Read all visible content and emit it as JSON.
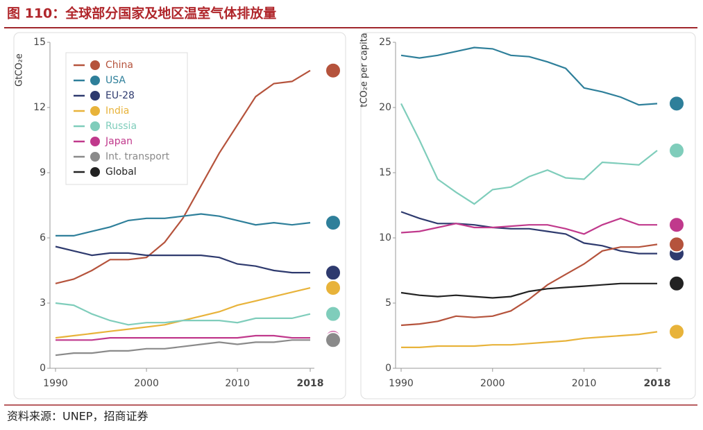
{
  "title": "图 110：全球部分国家及地区温室气体排放量",
  "source": "资料来源：UNEP，招商证券",
  "chart_data": [
    {
      "type": "line",
      "y_label": "GtCO₂e",
      "x": [
        1990,
        1992,
        1994,
        1996,
        1998,
        2000,
        2002,
        2004,
        2006,
        2008,
        2010,
        2012,
        2014,
        2016,
        2018
      ],
      "xlim": [
        1990,
        2018
      ],
      "xticks": [
        1990,
        2000,
        2010,
        2018
      ],
      "ylim": [
        0,
        15
      ],
      "yticks": [
        0,
        3,
        6,
        9,
        12,
        15
      ],
      "legend": [
        {
          "name": "China",
          "color": "#b5533c"
        },
        {
          "name": "USA",
          "color": "#2e7f9a"
        },
        {
          "name": "EU-28",
          "color": "#2e3a6e"
        },
        {
          "name": "India",
          "color": "#e8b33a"
        },
        {
          "name": "Russia",
          "color": "#7fcdbb"
        },
        {
          "name": "Japan",
          "color": "#c0398c"
        },
        {
          "name": "Int. transport",
          "color": "#8a8a8a"
        },
        {
          "name": "Global",
          "color": "#222222"
        }
      ],
      "series": [
        {
          "name": "China",
          "color": "#b5533c",
          "values": [
            3.9,
            4.1,
            4.5,
            5.0,
            5.0,
            5.1,
            5.8,
            6.9,
            8.4,
            9.9,
            11.2,
            12.5,
            13.1,
            13.2,
            13.7
          ]
        },
        {
          "name": "USA",
          "color": "#2e7f9a",
          "values": [
            6.1,
            6.1,
            6.3,
            6.5,
            6.8,
            6.9,
            6.9,
            7.0,
            7.1,
            7.0,
            6.8,
            6.6,
            6.7,
            6.6,
            6.7
          ]
        },
        {
          "name": "EU-28",
          "color": "#2e3a6e",
          "values": [
            5.6,
            5.4,
            5.2,
            5.3,
            5.3,
            5.2,
            5.2,
            5.2,
            5.2,
            5.1,
            4.8,
            4.7,
            4.5,
            4.4,
            4.4
          ]
        },
        {
          "name": "India",
          "color": "#e8b33a",
          "values": [
            1.4,
            1.5,
            1.6,
            1.7,
            1.8,
            1.9,
            2.0,
            2.2,
            2.4,
            2.6,
            2.9,
            3.1,
            3.3,
            3.5,
            3.7
          ]
        },
        {
          "name": "Russia",
          "color": "#7fcdbb",
          "values": [
            3.0,
            2.9,
            2.5,
            2.2,
            2.0,
            2.1,
            2.1,
            2.2,
            2.2,
            2.2,
            2.1,
            2.3,
            2.3,
            2.3,
            2.5
          ]
        },
        {
          "name": "Japan",
          "color": "#c0398c",
          "values": [
            1.3,
            1.3,
            1.3,
            1.4,
            1.4,
            1.4,
            1.4,
            1.4,
            1.4,
            1.4,
            1.4,
            1.5,
            1.5,
            1.4,
            1.4
          ]
        },
        {
          "name": "Int. transport",
          "color": "#8a8a8a",
          "values": [
            0.6,
            0.7,
            0.7,
            0.8,
            0.8,
            0.9,
            0.9,
            1.0,
            1.1,
            1.2,
            1.1,
            1.2,
            1.2,
            1.3,
            1.3
          ]
        }
      ]
    },
    {
      "type": "line",
      "y_label": "tCO₂e per capita",
      "x": [
        1990,
        1992,
        1994,
        1996,
        1998,
        2000,
        2002,
        2004,
        2006,
        2008,
        2010,
        2012,
        2014,
        2016,
        2018
      ],
      "xlim": [
        1990,
        2018
      ],
      "xticks": [
        1990,
        2000,
        2010,
        2018
      ],
      "ylim": [
        0,
        25
      ],
      "yticks": [
        0,
        5,
        10,
        15,
        20,
        25
      ],
      "series": [
        {
          "name": "USA",
          "color": "#2e7f9a",
          "values": [
            24.0,
            23.8,
            24.0,
            24.3,
            24.6,
            24.5,
            24.0,
            23.9,
            23.5,
            23.0,
            21.5,
            21.2,
            20.8,
            20.2,
            20.3
          ]
        },
        {
          "name": "Russia",
          "color": "#7fcdbb",
          "values": [
            20.3,
            17.5,
            14.5,
            13.5,
            12.6,
            13.7,
            13.9,
            14.7,
            15.2,
            14.6,
            14.5,
            15.8,
            15.7,
            15.6,
            16.7
          ]
        },
        {
          "name": "EU-28",
          "color": "#2e3a6e",
          "values": [
            12.0,
            11.5,
            11.1,
            11.1,
            11.0,
            10.8,
            10.7,
            10.7,
            10.5,
            10.3,
            9.6,
            9.4,
            9.0,
            8.8,
            8.8
          ]
        },
        {
          "name": "Japan",
          "color": "#c0398c",
          "values": [
            10.4,
            10.5,
            10.8,
            11.1,
            10.8,
            10.8,
            10.9,
            11.0,
            11.0,
            10.7,
            10.3,
            11.0,
            11.5,
            11.0,
            11.0
          ]
        },
        {
          "name": "China",
          "color": "#b5533c",
          "values": [
            3.3,
            3.4,
            3.6,
            4.0,
            3.9,
            4.0,
            4.4,
            5.3,
            6.4,
            7.2,
            8.0,
            9.0,
            9.3,
            9.3,
            9.5
          ]
        },
        {
          "name": "Global",
          "color": "#222222",
          "values": [
            5.8,
            5.6,
            5.5,
            5.6,
            5.5,
            5.4,
            5.5,
            5.9,
            6.1,
            6.2,
            6.3,
            6.4,
            6.5,
            6.5,
            6.5
          ]
        },
        {
          "name": "India",
          "color": "#e8b33a",
          "values": [
            1.6,
            1.6,
            1.7,
            1.7,
            1.7,
            1.8,
            1.8,
            1.9,
            2.0,
            2.1,
            2.3,
            2.4,
            2.5,
            2.6,
            2.8
          ]
        }
      ]
    }
  ]
}
